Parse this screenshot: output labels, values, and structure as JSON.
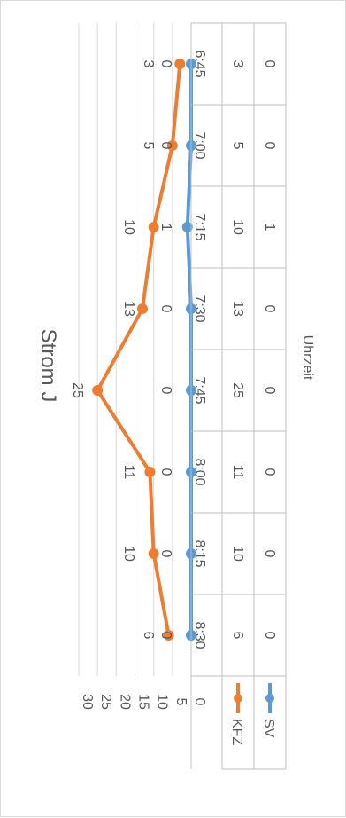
{
  "chart_data": {
    "type": "line",
    "title": "Strom J",
    "xlabel": "Uhrzeit",
    "ylabel": "",
    "categories": [
      "6:45",
      "7:00",
      "7:15",
      "7:30",
      "7:45",
      "8:00",
      "8:15",
      "8:30"
    ],
    "series": [
      {
        "name": "KFZ",
        "color": "#ED7D31",
        "values": [
          3,
          5,
          10,
          13,
          25,
          11,
          10,
          6
        ]
      },
      {
        "name": "SV",
        "color": "#5B9BD5",
        "values": [
          0,
          0,
          1,
          0,
          0,
          0,
          0,
          0
        ]
      }
    ],
    "ylim": [
      0,
      30
    ],
    "yticks": [
      0,
      5,
      10,
      15,
      20,
      25,
      30
    ],
    "grid": true,
    "data_labels": true,
    "data_table": true,
    "legend": "in data table",
    "orientation": "rotated 90° clockwise"
  }
}
